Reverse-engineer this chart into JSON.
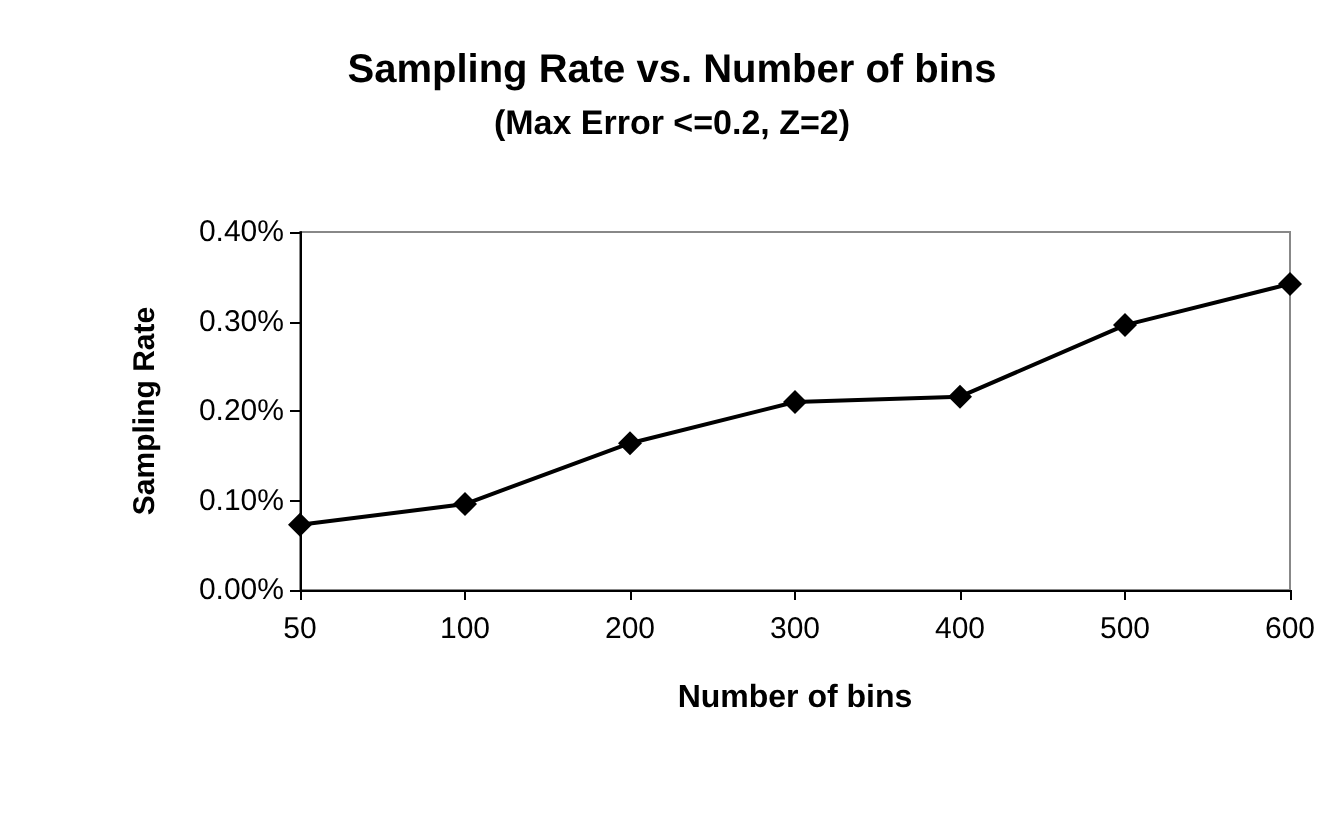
{
  "chart_data": {
    "type": "line",
    "title": "Sampling Rate vs. Number of bins",
    "subtitle": "(Max Error <=0.2, Z=2)",
    "xlabel": "Number of bins",
    "ylabel": "Sampling Rate",
    "categories": [
      "50",
      "100",
      "200",
      "300",
      "400",
      "500",
      "600"
    ],
    "series": [
      {
        "color": "#000000",
        "values": [
          0.073,
          0.096,
          0.164,
          0.21,
          0.216,
          0.296,
          0.342
        ]
      }
    ],
    "ylim": [
      0,
      0.4
    ],
    "yticks": [
      {
        "value": 0,
        "label": "0.00%"
      },
      {
        "value": 0.1,
        "label": "0.10%"
      },
      {
        "value": 0.2,
        "label": "0.20%"
      },
      {
        "value": 0.3,
        "label": "0.30%"
      },
      {
        "value": 0.4,
        "label": "0.40%"
      }
    ],
    "grid": false,
    "marker": "diamond",
    "line_style": "solid"
  }
}
